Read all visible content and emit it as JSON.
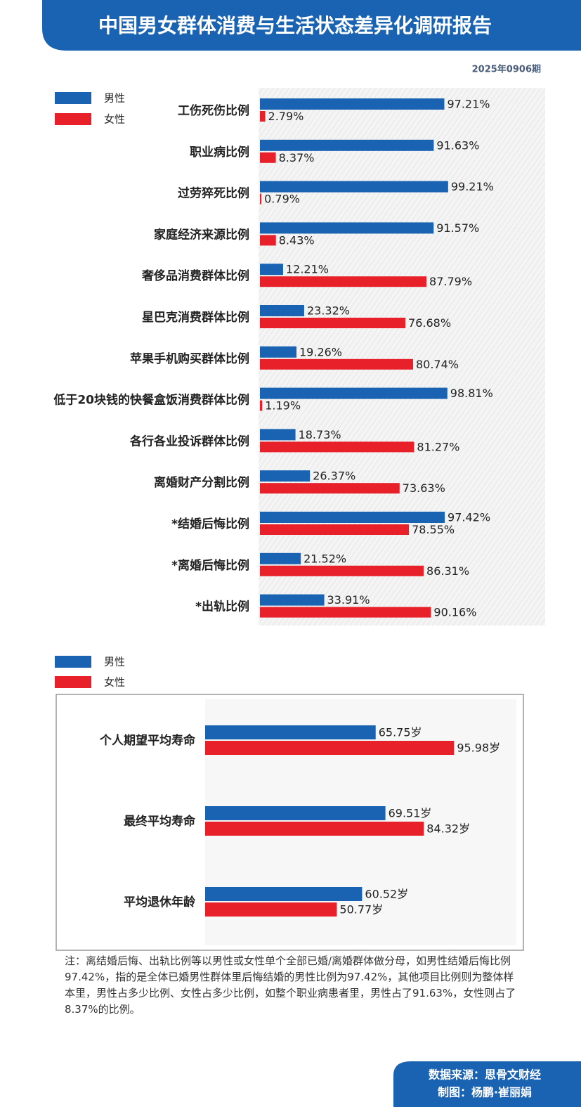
{
  "header": {
    "title": "中国男女群体消费与生活状态差异化调研报告",
    "issue": "2025年0906期"
  },
  "chart_data": [
    {
      "type": "hbar",
      "categories": [
        "工伤死伤比例",
        "职业病比例",
        "过劳猝死比例",
        "家庭经济来源比例",
        "奢侈品消费群体比例",
        "星巴克消费群体比例",
        "苹果手机购买群体比例",
        "低于20块钱的快餐盒饭消费群体比例",
        "各行各业投诉群体比例",
        "离婚财产分割比例",
        "*结婚后悔比例",
        "*离婚后悔比例",
        "*出轨比例"
      ],
      "series": [
        {
          "name": "男性",
          "color": "#1a63b3",
          "values": [
            97.21,
            91.63,
            99.21,
            91.57,
            12.21,
            23.32,
            19.26,
            98.81,
            18.73,
            26.37,
            97.42,
            21.52,
            33.91
          ],
          "value_labels": [
            "97.21%",
            "91.63%",
            "99.21%",
            "91.57%",
            "12.21%",
            "23.32%",
            "19.26%",
            "98.81%",
            "18.73%",
            "26.37%",
            "97.42%",
            "21.52%",
            "33.91%"
          ]
        },
        {
          "name": "女性",
          "color": "#e8202a",
          "values": [
            2.79,
            8.37,
            0.79,
            8.43,
            87.79,
            76.68,
            80.74,
            1.19,
            81.27,
            73.63,
            78.55,
            86.31,
            90.16
          ],
          "value_labels": [
            "2.79%",
            "8.37%",
            "0.79%",
            "8.43%",
            "87.79%",
            "76.68%",
            "80.74%",
            "1.19%",
            "81.27%",
            "73.63%",
            "78.55%",
            "86.31%",
            "90.16%"
          ]
        }
      ],
      "xlim": [
        0,
        150
      ]
    },
    {
      "type": "hbar",
      "categories": [
        "个人期望平均寿命",
        "最终平均寿命",
        "平均退休年龄"
      ],
      "series": [
        {
          "name": "男性",
          "color": "#1a63b3",
          "values": [
            65.75,
            69.51,
            60.52
          ],
          "value_labels": [
            "65.75岁",
            "69.51岁",
            "60.52岁"
          ]
        },
        {
          "name": "女性",
          "color": "#e8202a",
          "values": [
            95.98,
            84.32,
            50.77
          ],
          "value_labels": [
            "95.98岁",
            "84.32岁",
            "50.77岁"
          ]
        }
      ],
      "xlim": [
        0,
        120
      ]
    }
  ],
  "note": "注：离结婚后悔、出轨比例等以男性或女性单个全部已婚/离婚群体做分母，如男性结婚后悔比例97.42%，指的是全体已婚男性群体里后悔结婚的男性比例为97.42%，其他项目比例则为整体样本里，男性占多少比例、女性占多少比例，如整个职业病患者里，男性占了91.63%，女性则占了8.37%的比例。",
  "footer": {
    "source": "数据来源：思骨文财经",
    "author": "制图：杨鹏·崔丽娟"
  }
}
